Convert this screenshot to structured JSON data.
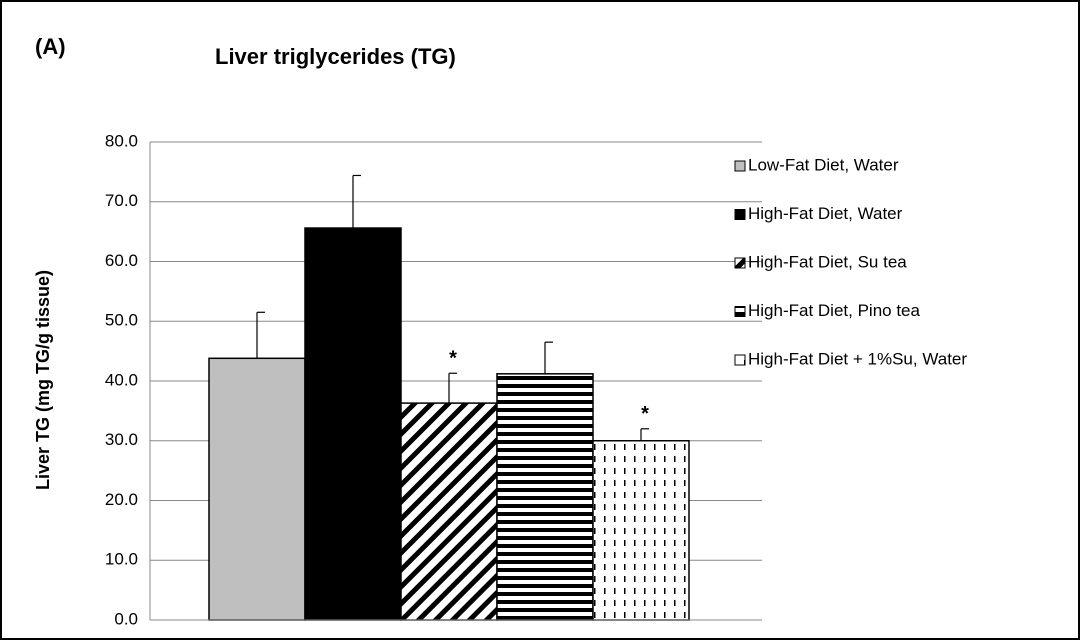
{
  "chart_data": {
    "type": "bar",
    "panel_label": "(A)",
    "title": "Liver triglycerides (TG)",
    "y_label": "Liver TG (mg TG/g tissue)",
    "ylim": [
      0,
      80
    ],
    "yticks": [
      {
        "value": 0,
        "label": "0.0"
      },
      {
        "value": 10,
        "label": "10.0"
      },
      {
        "value": 20,
        "label": "20.0"
      },
      {
        "value": 30,
        "label": "30.0"
      },
      {
        "value": 40,
        "label": "40.0"
      },
      {
        "value": 50,
        "label": "50.0"
      },
      {
        "value": 60,
        "label": "60.0"
      },
      {
        "value": 70,
        "label": "70.0"
      },
      {
        "value": 80,
        "label": "80.0"
      }
    ],
    "grid": true,
    "legend": "right",
    "series": [
      {
        "name": "Low-Fat Diet, Water",
        "color": "#bfbfbf",
        "pattern": "solid",
        "value": 43.8,
        "error": 7.7
      },
      {
        "name": "High-Fat Diet, Water",
        "color": "#000000",
        "pattern": "solid",
        "value": 65.6,
        "error": 8.8
      },
      {
        "name": "High-Fat Diet, Su tea",
        "color": "#000000",
        "pattern": "diagonal",
        "value": 36.3,
        "error": 5.0,
        "annotation": "*"
      },
      {
        "name": "High-Fat Diet, Pino tea",
        "color": "#000000",
        "pattern": "horizontal",
        "value": 41.2,
        "error": 5.3
      },
      {
        "name": "High-Fat Diet + 1%Su, Water",
        "color": "#000000",
        "pattern": "dashed-vertical",
        "value": 30.0,
        "error": 2.0,
        "annotation": "*"
      }
    ]
  }
}
